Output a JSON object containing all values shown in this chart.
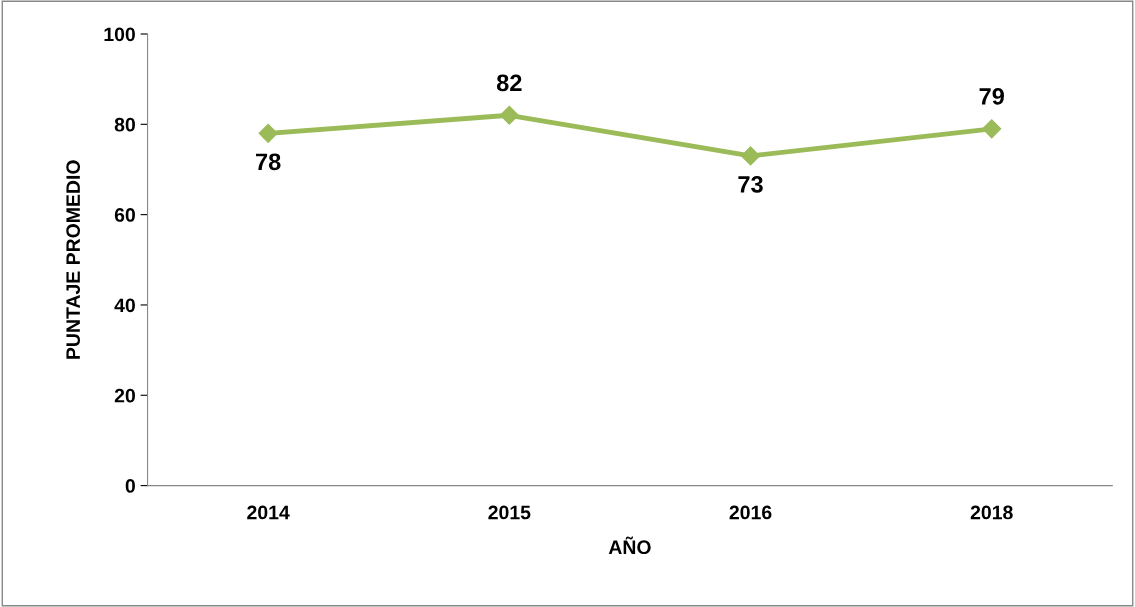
{
  "chart_data": {
    "type": "line",
    "xlabel": "AÑO",
    "ylabel": "PUNTAJE PROMEDIO",
    "categories": [
      "2014",
      "2015",
      "2016",
      "2018"
    ],
    "series": [
      {
        "color": "#9bbb59",
        "values": [
          78,
          82,
          73,
          79
        ]
      }
    ],
    "ylim": [
      0,
      100
    ],
    "yticks": [
      0,
      20,
      40,
      60,
      80,
      100
    ],
    "grid": false,
    "marker": "diamond",
    "line_style": "solid",
    "data_labels": true
  }
}
